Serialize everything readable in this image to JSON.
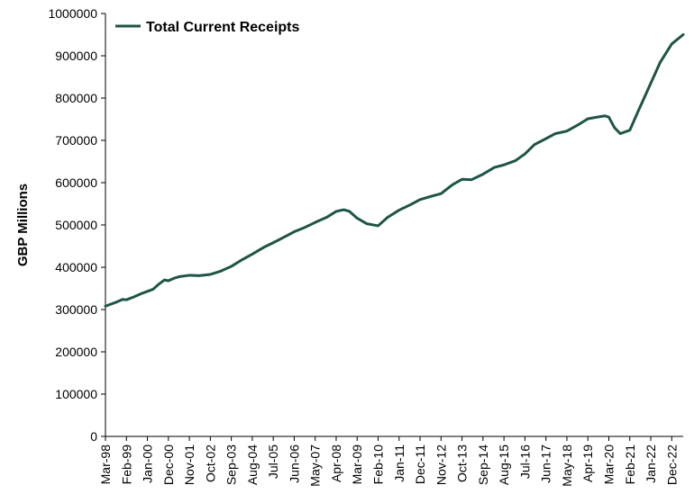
{
  "chart_data": {
    "type": "line",
    "ylabel": "GBP Millions",
    "xlabel": "",
    "ylim": [
      0,
      1000000
    ],
    "yticks": [
      0,
      100000,
      200000,
      300000,
      400000,
      500000,
      600000,
      700000,
      800000,
      900000,
      1000000
    ],
    "grid": false,
    "legend_position": "top-left",
    "xlim": [
      "Mar-98",
      "Jun-23"
    ],
    "x_tick_labels": [
      "Mar-98",
      "Feb-99",
      "Jan-00",
      "Dec-00",
      "Nov-01",
      "Oct-02",
      "Sep-03",
      "Aug-04",
      "Jul-05",
      "Jun-06",
      "May-07",
      "Apr-08",
      "Mar-09",
      "Feb-10",
      "Jan-11",
      "Dec-11",
      "Nov-12",
      "Oct-13",
      "Sep-14",
      "Aug-15",
      "Jul-16",
      "Jun-17",
      "May-18",
      "Apr-19",
      "Mar-20",
      "Feb-21",
      "Jan-22",
      "Dec-22"
    ],
    "series": [
      {
        "name": "Total Current Receipts",
        "color": "#1d5546",
        "points": [
          {
            "x": "Mar-98",
            "y": 308000
          },
          {
            "x": "Jun-98",
            "y": 313000
          },
          {
            "x": "Sep-98",
            "y": 318000
          },
          {
            "x": "Dec-98",
            "y": 324000
          },
          {
            "x": "Feb-99",
            "y": 323000
          },
          {
            "x": "Jun-99",
            "y": 330000
          },
          {
            "x": "Oct-99",
            "y": 338000
          },
          {
            "x": "Jan-00",
            "y": 343000
          },
          {
            "x": "Apr-00",
            "y": 348000
          },
          {
            "x": "Jul-00",
            "y": 360000
          },
          {
            "x": "Oct-00",
            "y": 370000
          },
          {
            "x": "Dec-00",
            "y": 368000
          },
          {
            "x": "Mar-01",
            "y": 374000
          },
          {
            "x": "Jun-01",
            "y": 378000
          },
          {
            "x": "Nov-01",
            "y": 381000
          },
          {
            "x": "Apr-02",
            "y": 380000
          },
          {
            "x": "Oct-02",
            "y": 383000
          },
          {
            "x": "Mar-03",
            "y": 390000
          },
          {
            "x": "Sep-03",
            "y": 402000
          },
          {
            "x": "Feb-04",
            "y": 416000
          },
          {
            "x": "Aug-04",
            "y": 431000
          },
          {
            "x": "Feb-05",
            "y": 447000
          },
          {
            "x": "Jul-05",
            "y": 458000
          },
          {
            "x": "Jan-06",
            "y": 472000
          },
          {
            "x": "Jun-06",
            "y": 484000
          },
          {
            "x": "Nov-06",
            "y": 493000
          },
          {
            "x": "May-07",
            "y": 506000
          },
          {
            "x": "Nov-07",
            "y": 518000
          },
          {
            "x": "Apr-08",
            "y": 532000
          },
          {
            "x": "Aug-08",
            "y": 536000
          },
          {
            "x": "Nov-08",
            "y": 532000
          },
          {
            "x": "Mar-09",
            "y": 516000
          },
          {
            "x": "Aug-09",
            "y": 503000
          },
          {
            "x": "Feb-10",
            "y": 498000
          },
          {
            "x": "Jul-10",
            "y": 518000
          },
          {
            "x": "Jan-11",
            "y": 535000
          },
          {
            "x": "Jul-11",
            "y": 548000
          },
          {
            "x": "Dec-11",
            "y": 560000
          },
          {
            "x": "Jun-12",
            "y": 568000
          },
          {
            "x": "Nov-12",
            "y": 574000
          },
          {
            "x": "May-13",
            "y": 595000
          },
          {
            "x": "Oct-13",
            "y": 608000
          },
          {
            "x": "Mar-14",
            "y": 607000
          },
          {
            "x": "Sep-14",
            "y": 620000
          },
          {
            "x": "Mar-15",
            "y": 636000
          },
          {
            "x": "Aug-15",
            "y": 642000
          },
          {
            "x": "Feb-16",
            "y": 652000
          },
          {
            "x": "Jul-16",
            "y": 668000
          },
          {
            "x": "Dec-16",
            "y": 690000
          },
          {
            "x": "Jun-17",
            "y": 704000
          },
          {
            "x": "Nov-17",
            "y": 716000
          },
          {
            "x": "May-18",
            "y": 722000
          },
          {
            "x": "Nov-18",
            "y": 737000
          },
          {
            "x": "Apr-19",
            "y": 751000
          },
          {
            "x": "Sep-19",
            "y": 755000
          },
          {
            "x": "Jan-20",
            "y": 758000
          },
          {
            "x": "Mar-20",
            "y": 755000
          },
          {
            "x": "Jun-20",
            "y": 730000
          },
          {
            "x": "Sep-20",
            "y": 716000
          },
          {
            "x": "Feb-21",
            "y": 724000
          },
          {
            "x": "Jun-21",
            "y": 765000
          },
          {
            "x": "Sep-21",
            "y": 795000
          },
          {
            "x": "Jan-22",
            "y": 835000
          },
          {
            "x": "Jun-22",
            "y": 885000
          },
          {
            "x": "Dec-22",
            "y": 928000
          },
          {
            "x": "Jun-23",
            "y": 950000
          }
        ]
      }
    ]
  }
}
